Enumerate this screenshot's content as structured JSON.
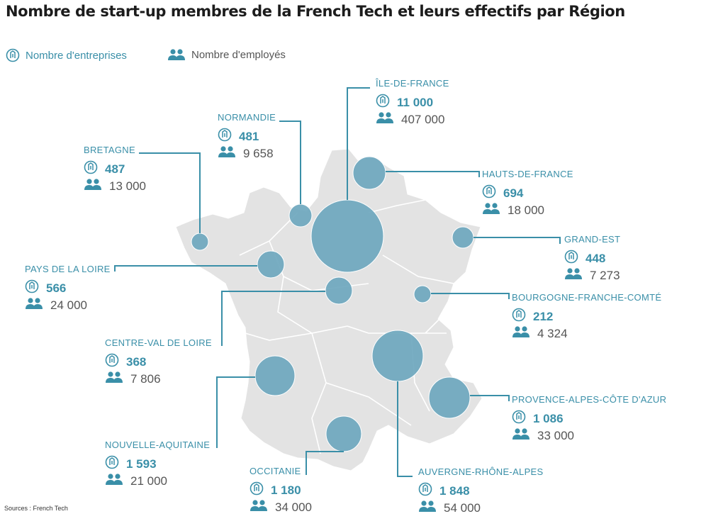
{
  "title": "Nombre de start-up membres de la French Tech et leurs effectifs par Région",
  "legend": {
    "companies": "Nombre d'entreprises",
    "employees": "Nombre d'employés"
  },
  "source": "Sources : French Tech",
  "colors": {
    "bubble": "#6fa8be",
    "accent": "#3a8fa8",
    "land": "#e3e3e3",
    "text_dark": "#555555"
  },
  "regions": [
    {
      "key": "idf",
      "name": "ÎLE-DE-FRANCE",
      "companies": "11 000",
      "employees": "407 000",
      "companies_value": 11000,
      "employees_value": 407000
    },
    {
      "key": "norm",
      "name": "NORMANDIE",
      "companies": "481",
      "employees": "9 658",
      "companies_value": 481,
      "employees_value": 9658
    },
    {
      "key": "bret",
      "name": "BRETAGNE",
      "companies": "487",
      "employees": "13 000",
      "companies_value": 487,
      "employees_value": 13000
    },
    {
      "key": "hdf",
      "name": "HAUTS-DE-FRANCE",
      "companies": "694",
      "employees": "18 000",
      "companies_value": 694,
      "employees_value": 18000
    },
    {
      "key": "ge",
      "name": "GRAND-EST",
      "companies": "448",
      "employees": "7 273",
      "companies_value": 448,
      "employees_value": 7273
    },
    {
      "key": "pdl",
      "name": "PAYS DE LA LOIRE",
      "companies": "566",
      "employees": "24 000",
      "companies_value": 566,
      "employees_value": 24000
    },
    {
      "key": "bfc",
      "name": "BOURGOGNE-FRANCHE-COMTÉ",
      "companies": "212",
      "employees": "4 324",
      "companies_value": 212,
      "employees_value": 4324
    },
    {
      "key": "cvl",
      "name": "CENTRE-VAL DE LOIRE",
      "companies": "368",
      "employees": "7 806",
      "companies_value": 368,
      "employees_value": 7806
    },
    {
      "key": "paca",
      "name": "PROVENCE-ALPES-CÔTE D'AZUR",
      "companies": "1 086",
      "employees": "33 000",
      "companies_value": 1086,
      "employees_value": 33000
    },
    {
      "key": "na",
      "name": "NOUVELLE-AQUITAINE",
      "companies": "1 593",
      "employees": "21 000",
      "companies_value": 1593,
      "employees_value": 21000
    },
    {
      "key": "occ",
      "name": "OCCITANIE",
      "companies": "1 180",
      "employees": "34 000",
      "companies_value": 1180,
      "employees_value": 34000
    },
    {
      "key": "ara",
      "name": "AUVERGNE-RHÔNE-ALPES",
      "companies": "1 848",
      "employees": "54 000",
      "companies_value": 1848,
      "employees_value": 54000
    }
  ]
}
